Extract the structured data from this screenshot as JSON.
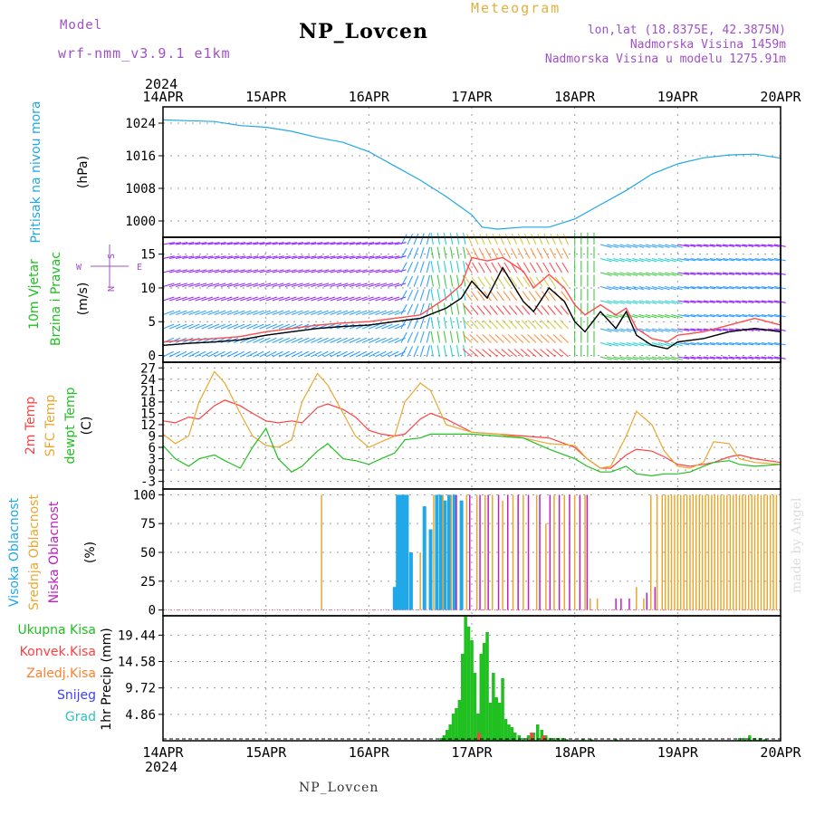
{
  "header": {
    "model_label": "Model",
    "model_name": "wrf-nmm_v3.9.1 e1km",
    "title": "NP_Lovcen",
    "meteogram_label": "Meteogram",
    "lonlat": "lon,lat (18.8375E, 42.3875N)",
    "altitude": "Nadmorska Visina 1459m",
    "model_altitude": "Nadmorska Visina u modelu 1275.91m",
    "year": "2024",
    "footer": "NP_Lovcen",
    "watermark": "made by Angel",
    "colors": {
      "title": "#000000",
      "model": "#a050c8",
      "meteogram": "#e0b040",
      "info": "#a050c8"
    }
  },
  "chart_data": [
    {
      "type": "line",
      "panel": "pressure",
      "ylabel_main": "Pritisak na nivou mora",
      "ylabel_unit": "(hPa)",
      "yticks": [
        "1024",
        "1016",
        "1008",
        "1000"
      ],
      "ytick_values": [
        1024,
        1016,
        1008,
        1000
      ],
      "ylim": [
        996,
        1028
      ],
      "x_categories": [
        "14APR",
        "15APR",
        "16APR",
        "17APR",
        "18APR",
        "19APR",
        "20APR"
      ],
      "series": [
        {
          "color": "#20a8e8",
          "x": [
            0,
            0.25,
            0.5,
            0.75,
            1.0,
            1.25,
            1.5,
            1.75,
            2.0,
            2.25,
            2.5,
            2.75,
            3.0,
            3.1,
            3.25,
            3.5,
            3.75,
            4.0,
            4.25,
            4.5,
            4.75,
            5.0,
            5.25,
            5.5,
            5.75,
            6.0
          ],
          "y": [
            1024.8,
            1024.6,
            1024.4,
            1023.4,
            1023.0,
            1022.0,
            1020.5,
            1019.3,
            1017.0,
            1013.5,
            1010.0,
            1006.0,
            1001.5,
            998.5,
            998.0,
            998.5,
            998.5,
            1000.5,
            1004.0,
            1007.5,
            1011.5,
            1014.0,
            1015.5,
            1016.2,
            1016.4,
            1015.4
          ]
        }
      ]
    },
    {
      "type": "line",
      "panel": "wind",
      "ylabel_main": "10m Vjetar",
      "ylabel_main2": "Brzina i Pravac",
      "ylabel_unit": "(m/s)",
      "compass": {
        "n": "N",
        "s": "S",
        "e": "E",
        "w": "W"
      },
      "yticks": [
        "15",
        "10",
        "5",
        "0"
      ],
      "ytick_values": [
        15,
        10,
        5,
        0
      ],
      "ylim": [
        -1,
        17.5
      ],
      "series": [
        {
          "name": "speed",
          "color": "#000000",
          "x": [
            0,
            0.25,
            0.5,
            0.75,
            1.0,
            1.25,
            1.5,
            1.75,
            2.0,
            2.25,
            2.5,
            2.75,
            2.9,
            3.0,
            3.15,
            3.3,
            3.5,
            3.6,
            3.75,
            3.9,
            4.0,
            4.1,
            4.25,
            4.4,
            4.5,
            4.6,
            4.75,
            4.9,
            5.0,
            5.25,
            5.5,
            5.75,
            6.0
          ],
          "y": [
            1.5,
            1.8,
            2.0,
            2.3,
            3.0,
            3.5,
            4.0,
            4.3,
            4.5,
            5.0,
            5.5,
            7.0,
            8.5,
            11.0,
            8.5,
            13.0,
            8.0,
            6.5,
            10.0,
            8.0,
            5.0,
            3.5,
            6.5,
            4.0,
            6.5,
            3.0,
            1.5,
            1.0,
            2.0,
            2.5,
            3.5,
            4.0,
            3.5
          ]
        },
        {
          "name": "gust",
          "color": "#ff5050",
          "x": [
            0,
            0.25,
            0.5,
            0.75,
            1.0,
            1.25,
            1.5,
            1.75,
            2.0,
            2.25,
            2.5,
            2.75,
            2.9,
            3.0,
            3.15,
            3.3,
            3.5,
            3.6,
            3.75,
            3.9,
            4.0,
            4.1,
            4.25,
            4.4,
            4.5,
            4.6,
            4.75,
            4.9,
            5.0,
            5.25,
            5.5,
            5.75,
            6.0
          ],
          "y": [
            2.0,
            2.3,
            2.5,
            2.8,
            3.5,
            4.0,
            4.5,
            4.8,
            5.0,
            5.5,
            6.0,
            8.5,
            10.5,
            14.5,
            14.0,
            14.5,
            12.5,
            10.0,
            12.0,
            10.0,
            7.5,
            6.0,
            7.5,
            6.0,
            7.0,
            4.0,
            2.5,
            2.0,
            3.0,
            3.5,
            4.5,
            5.5,
            4.5
          ]
        }
      ]
    },
    {
      "type": "line",
      "panel": "temperature",
      "ylabels": [
        {
          "text": "2m Temp",
          "color": "#ff4040"
        },
        {
          "text": "SFC Temp",
          "color": "#e8a830"
        },
        {
          "text": "dewpt Temp",
          "color": "#20c020"
        }
      ],
      "ylabel_unit": "(C)",
      "yticks": [
        "27",
        "24",
        "21",
        "18",
        "15",
        "12",
        "9",
        "6",
        "3",
        "0",
        "-3"
      ],
      "ytick_values": [
        27,
        24,
        21,
        18,
        15,
        12,
        9,
        6,
        3,
        0,
        -3
      ],
      "ylim": [
        -5,
        28.5
      ],
      "series": [
        {
          "name": "2m Temp",
          "color": "#ff4040",
          "x": [
            0,
            0.12,
            0.25,
            0.35,
            0.5,
            0.6,
            0.75,
            0.87,
            1.0,
            1.12,
            1.25,
            1.35,
            1.5,
            1.6,
            1.75,
            1.87,
            2.0,
            2.12,
            2.25,
            2.35,
            2.5,
            2.6,
            2.75,
            3.0,
            3.25,
            3.5,
            3.75,
            4.0,
            4.12,
            4.25,
            4.35,
            4.5,
            4.6,
            4.75,
            4.87,
            5.0,
            5.12,
            5.25,
            5.35,
            5.5,
            5.6,
            5.75,
            6.0
          ],
          "y": [
            13.0,
            12.5,
            14.0,
            13.5,
            17.0,
            18.5,
            17.0,
            15.0,
            13.0,
            12.5,
            13.0,
            12.5,
            16.5,
            17.5,
            16.0,
            14.0,
            10.5,
            9.5,
            9.0,
            9.5,
            13.5,
            15.0,
            13.5,
            10.0,
            9.5,
            9.0,
            8.5,
            6.0,
            3.0,
            0.5,
            0.5,
            4.0,
            5.5,
            5.0,
            3.5,
            1.5,
            1.0,
            1.5,
            2.0,
            3.5,
            4.0,
            3.0,
            2.0
          ]
        },
        {
          "name": "SFC Temp",
          "color": "#e8a830",
          "x": [
            0,
            0.12,
            0.25,
            0.35,
            0.5,
            0.6,
            0.75,
            0.87,
            1.0,
            1.12,
            1.25,
            1.35,
            1.5,
            1.6,
            1.75,
            1.87,
            2.0,
            2.12,
            2.25,
            2.35,
            2.5,
            2.6,
            2.75,
            3.0,
            3.25,
            3.5,
            3.75,
            4.0,
            4.12,
            4.25,
            4.35,
            4.5,
            4.6,
            4.75,
            4.87,
            5.0,
            5.12,
            5.25,
            5.35,
            5.5,
            5.6,
            5.75,
            6.0
          ],
          "y": [
            9.5,
            7.0,
            9.0,
            18.0,
            26.0,
            23.0,
            15.0,
            9.0,
            6.5,
            6.0,
            8.0,
            18.0,
            25.5,
            22.5,
            15.0,
            9.0,
            6.0,
            7.5,
            9.0,
            18.0,
            23.0,
            21.0,
            12.0,
            10.0,
            9.5,
            8.5,
            7.0,
            6.5,
            3.0,
            0.5,
            1.0,
            9.0,
            15.5,
            12.0,
            5.0,
            1.0,
            0.5,
            2.0,
            7.5,
            7.0,
            3.0,
            2.0,
            1.5
          ]
        },
        {
          "name": "dewpt Temp",
          "color": "#20c020",
          "x": [
            0,
            0.12,
            0.25,
            0.35,
            0.5,
            0.6,
            0.75,
            0.87,
            1.0,
            1.12,
            1.25,
            1.35,
            1.5,
            1.6,
            1.75,
            1.87,
            2.0,
            2.12,
            2.25,
            2.35,
            2.5,
            2.6,
            2.75,
            3.0,
            3.25,
            3.5,
            3.75,
            4.0,
            4.12,
            4.25,
            4.35,
            4.5,
            4.6,
            4.75,
            4.87,
            5.0,
            5.12,
            5.25,
            5.35,
            5.5,
            5.6,
            5.75,
            6.0
          ],
          "y": [
            6.5,
            3.0,
            1.0,
            3.0,
            4.0,
            2.5,
            0.5,
            6.0,
            11.0,
            3.0,
            -0.5,
            1.0,
            5.0,
            7.0,
            3.0,
            2.5,
            1.5,
            3.0,
            4.5,
            8.0,
            8.5,
            9.5,
            9.5,
            9.5,
            9.0,
            8.5,
            5.5,
            3.0,
            1.0,
            -0.5,
            -0.5,
            1.0,
            -1.0,
            -1.5,
            -1.0,
            -1.0,
            -0.5,
            1.0,
            2.0,
            2.5,
            1.5,
            1.0,
            1.5
          ]
        }
      ]
    },
    {
      "type": "bar",
      "panel": "cloud",
      "ylabels": [
        {
          "text": "Visoka Oblacnost",
          "color": "#20a8e8"
        },
        {
          "text": "Srednja Oblacnost",
          "color": "#e8a830"
        },
        {
          "text": "Niska Oblacnost",
          "color": "#c020c0"
        }
      ],
      "ylabel_unit": "(%)",
      "yticks": [
        "100",
        "75",
        "50",
        "25",
        "0"
      ],
      "ytick_values": [
        100,
        75,
        50,
        25,
        0
      ],
      "ylim": [
        -5,
        105
      ],
      "series": [
        {
          "name": "Visoka Oblacnost",
          "color": "#20a8e8",
          "width": 4,
          "x": [
            2.25,
            2.28,
            2.31,
            2.34,
            2.37,
            2.41,
            2.54,
            2.6,
            2.66,
            2.7,
            2.74,
            2.78,
            2.83,
            2.9
          ],
          "values": [
            20,
            100,
            100,
            100,
            100,
            50,
            90,
            70,
            100,
            100,
            95,
            100,
            100,
            95
          ]
        },
        {
          "name": "Srednja Oblacnost",
          "color": "#e8a830",
          "width": 1.5,
          "x": [
            1.54,
            2.5,
            2.63,
            2.72,
            2.8,
            2.95,
            3.05,
            3.13,
            3.2,
            3.3,
            3.4,
            3.5,
            3.63,
            3.72,
            3.8,
            3.9,
            4.0,
            4.1,
            4.15,
            4.22,
            4.6,
            4.67,
            4.74,
            4.8,
            4.85,
            4.88,
            4.91,
            4.94,
            4.97,
            5.0,
            5.03,
            5.06,
            5.09,
            5.12,
            5.15,
            5.18,
            5.21,
            5.24,
            5.27,
            5.3,
            5.33,
            5.36,
            5.39,
            5.42,
            5.45,
            5.48,
            5.51,
            5.54,
            5.57,
            5.6,
            5.63,
            5.66,
            5.69,
            5.72,
            5.75,
            5.78,
            5.81,
            5.84,
            5.87,
            5.9,
            5.93,
            5.96
          ],
          "values": [
            100,
            50,
            100,
            100,
            100,
            100,
            100,
            100,
            100,
            95,
            100,
            100,
            100,
            75,
            100,
            100,
            100,
            100,
            10,
            10,
            20,
            10,
            100,
            100,
            100,
            100,
            100,
            100,
            100,
            100,
            100,
            100,
            100,
            100,
            100,
            100,
            100,
            100,
            100,
            100,
            100,
            100,
            100,
            100,
            100,
            100,
            100,
            100,
            100,
            100,
            100,
            100,
            100,
            100,
            100,
            100,
            100,
            100,
            100,
            100,
            100,
            100
          ]
        },
        {
          "name": "Niska Oblacnost",
          "color": "#c020c0",
          "width": 1.5,
          "x": [
            2.85,
            2.98,
            3.08,
            3.16,
            3.26,
            3.35,
            3.45,
            3.55,
            3.66,
            3.76,
            3.85,
            3.95,
            4.05,
            4.12,
            4.4,
            4.45,
            4.53,
            4.7,
            4.78
          ],
          "values": [
            100,
            100,
            100,
            100,
            100,
            100,
            100,
            100,
            100,
            100,
            100,
            100,
            100,
            100,
            10,
            10,
            10,
            15,
            20
          ]
        }
      ]
    },
    {
      "type": "bar",
      "panel": "precip",
      "ylabel_main": "1hr Precip (mm)",
      "legend": [
        {
          "text": "Ukupna Kisa",
          "color": "#20c020"
        },
        {
          "text": "Konvek.Kisa",
          "color": "#ff4040"
        },
        {
          "text": "Zaledj.Kisa",
          "color": "#ff8030"
        },
        {
          "text": "Snijeg",
          "color": "#4040ff"
        },
        {
          "text": "Grad",
          "color": "#30c0c0"
        }
      ],
      "yticks": [
        "19.44",
        "14.58",
        "9.72",
        "4.86"
      ],
      "ytick_values": [
        19.44,
        14.58,
        9.72,
        4.86
      ],
      "ylim": [
        0,
        23
      ],
      "series": [
        {
          "name": "Ukupna Kisa",
          "color": "#20c020",
          "x": [
            2.7,
            2.73,
            2.76,
            2.79,
            2.82,
            2.85,
            2.88,
            2.91,
            2.94,
            2.97,
            3.0,
            3.03,
            3.06,
            3.09,
            3.12,
            3.15,
            3.18,
            3.21,
            3.24,
            3.27,
            3.3,
            3.33,
            3.36,
            3.39,
            3.42,
            3.46,
            3.5,
            3.55,
            3.6,
            3.64,
            3.68,
            3.72,
            3.76,
            3.8,
            3.84,
            3.88,
            3.92,
            4.08,
            4.16,
            4.4,
            5.6,
            5.65,
            5.7,
            5.75,
            5.8,
            5.85
          ],
          "values": [
            0.5,
            1.0,
            2.0,
            3.0,
            5.0,
            6.0,
            7.5,
            16.0,
            23.0,
            21.0,
            18.5,
            12.5,
            5.0,
            16.0,
            18.0,
            20.0,
            7.0,
            12.5,
            8.0,
            7.0,
            11.5,
            4.0,
            3.0,
            2.5,
            1.5,
            1.0,
            0.5,
            1.0,
            1.5,
            3.0,
            2.0,
            1.0,
            0.5,
            0.5,
            0.5,
            0.5,
            0.3,
            0.3,
            0.3,
            0.3,
            0.5,
            0.5,
            1.0,
            0.5,
            0.5,
            0.3
          ]
        },
        {
          "name": "Konvek.Kisa",
          "color": "#ff4040",
          "x": [
            3.07,
            3.58,
            3.7
          ],
          "values": [
            1.5,
            1.5,
            1.0
          ]
        }
      ]
    }
  ]
}
